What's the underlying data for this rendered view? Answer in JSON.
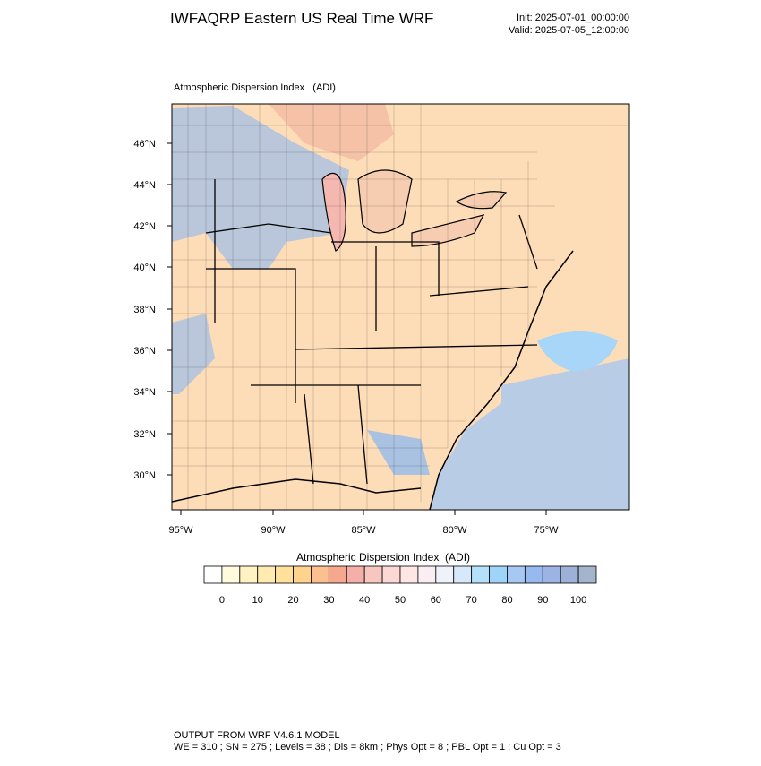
{
  "header": {
    "title": "IWFAQRP Eastern US Real Time WRF",
    "init": "Init: 2025-07-01_00:00:00",
    "valid": "Valid: 2025-07-05_12:00:00"
  },
  "map": {
    "label": "Atmospheric Dispersion Index   (ADI)",
    "lat_labels": [
      "46°N",
      "44°N",
      "42°N",
      "40°N",
      "38°N",
      "36°N",
      "34°N",
      "32°N",
      "30°N"
    ],
    "lon_labels": [
      "95°W",
      "90°W",
      "85°W",
      "80°W",
      "75°W"
    ]
  },
  "colorbar": {
    "title": "Atmospheric Dispersion Index  (ADI)",
    "ticks": [
      0,
      10,
      20,
      30,
      40,
      50,
      60,
      70,
      80,
      90,
      100
    ],
    "colors": [
      "#ffffff",
      "#fffbdc",
      "#fff3c4",
      "#ffeab0",
      "#ffe19c",
      "#ffd38c",
      "#fcc090",
      "#f6a88e",
      "#f4b0a8",
      "#f8c6c0",
      "#fbd8d4",
      "#fde6e4",
      "#fbeef2",
      "#eef2fb",
      "#d6e8fa",
      "#b4e0fa",
      "#9ed4f8",
      "#a8c8f4",
      "#98b8f0",
      "#9cb4e4",
      "#9cb0d8",
      "#a4b4cc"
    ]
  },
  "footer": {
    "model": "OUTPUT FROM WRF V4.6.1 MODEL",
    "settings": "WE = 310 ; SN = 275 ; Levels = 38 ; Dis = 8km ; Phys Opt = 8 ; PBL Opt = 1 ; Cu Opt = 3"
  }
}
